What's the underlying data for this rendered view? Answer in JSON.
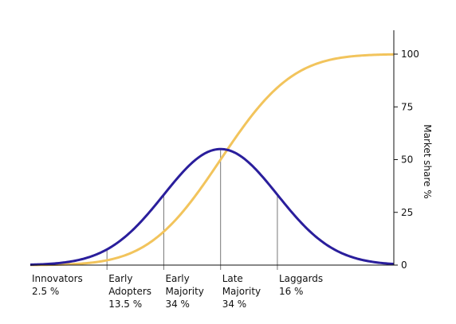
{
  "chart_data": {
    "type": "line",
    "title": "",
    "ylabel": "Market share %",
    "yticks": [
      0,
      25,
      50,
      75,
      100
    ],
    "ylim": [
      0,
      110
    ],
    "x_domain": [
      -3.35,
      3.05
    ],
    "grid": false,
    "colors": {
      "adoption_curve": "#2a1e9c",
      "market_share_curve": "#f2c45c",
      "divider": "#777777",
      "axis": "#111111"
    },
    "series": [
      {
        "key": "adoption_curve",
        "type": "bell",
        "peak": 55
      },
      {
        "key": "market_share_curve",
        "type": "cumulative",
        "max": 100
      }
    ],
    "dividers_sd": [
      -2,
      -1,
      0,
      1
    ],
    "categories": [
      {
        "line1": "Innovators",
        "line2": "2.5 %",
        "line3": ""
      },
      {
        "line1": "Early",
        "line2": "Adopters",
        "line3": "13.5 %"
      },
      {
        "line1": "Early",
        "line2": "Majority",
        "line3": "34 %"
      },
      {
        "line1": "Late",
        "line2": "Majority",
        "line3": "34 %"
      },
      {
        "line1": "Laggards",
        "line2": "16 %",
        "line3": ""
      }
    ],
    "shares_percent": [
      2.5,
      13.5,
      34,
      34,
      16
    ]
  }
}
